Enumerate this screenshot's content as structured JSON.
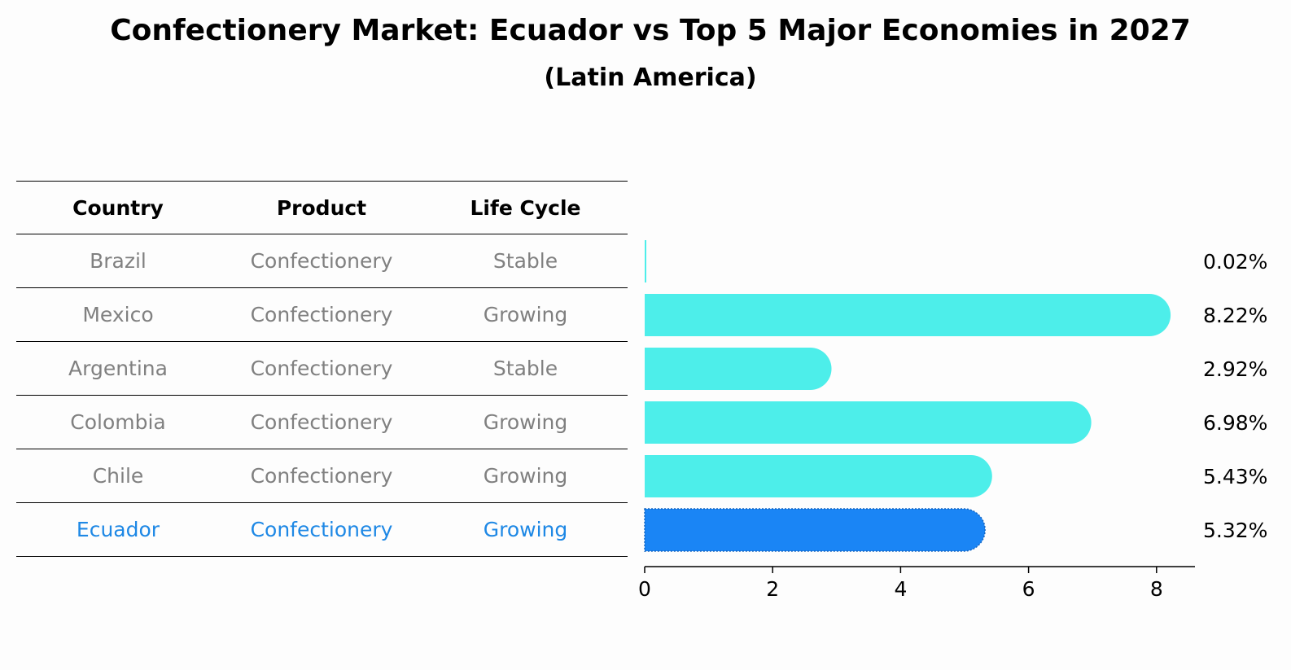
{
  "title": "Confectionery Market: Ecuador vs Top 5 Major Economies in 2027",
  "subtitle": "(Latin America)",
  "table": {
    "headers": [
      "Country",
      "Product",
      "Life Cycle"
    ],
    "rows": [
      [
        "Brazil",
        "Confectionery",
        "Stable"
      ],
      [
        "Mexico",
        "Confectionery",
        "Growing"
      ],
      [
        "Argentina",
        "Confectionery",
        "Stable"
      ],
      [
        "Colombia",
        "Confectionery",
        "Growing"
      ],
      [
        "Chile",
        "Confectionery",
        "Growing"
      ],
      [
        "Ecuador",
        "Confectionery",
        "Growing"
      ]
    ],
    "highlight_row": 5
  },
  "chart_data": {
    "type": "bar",
    "orientation": "horizontal",
    "categories": [
      "Brazil",
      "Mexico",
      "Argentina",
      "Colombia",
      "Chile",
      "Ecuador"
    ],
    "values": [
      0.02,
      8.22,
      2.92,
      6.98,
      5.43,
      5.32
    ],
    "value_labels": [
      "0.02%",
      "8.22%",
      "2.92%",
      "6.98%",
      "5.43%",
      "5.32%"
    ],
    "xticks": [
      "0",
      "2",
      "4",
      "6",
      "8"
    ],
    "xlim": [
      0,
      8.6
    ],
    "colors": {
      "default": "#4deeea",
      "highlight": "#1a85f5"
    },
    "highlight": "Ecuador",
    "grid": false
  }
}
